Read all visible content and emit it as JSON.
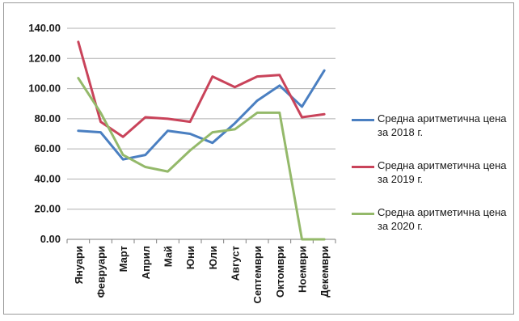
{
  "chart_data": {
    "type": "line",
    "categories": [
      "Януари",
      "Февруари",
      "Март",
      "Април",
      "Май",
      "Юни",
      "Юли",
      "Август",
      "Септември",
      "Октомври",
      "Ноември",
      "Декември"
    ],
    "y_tick_labels": [
      "0.00",
      "20.00",
      "40.00",
      "60.00",
      "80.00",
      "100.00",
      "120.00",
      "140.00"
    ],
    "ylim": [
      0,
      140
    ],
    "grid": true,
    "legend_position": "right",
    "series": [
      {
        "name": "Средна аритметична цена за 2018 г.",
        "color": "#4a7fc1",
        "values": [
          72,
          71,
          53,
          56,
          72,
          70,
          64,
          77,
          92,
          102,
          88,
          112
        ]
      },
      {
        "name": "Средна аритметична цена за 2019 г.",
        "color": "#c9435a",
        "values": [
          131,
          78,
          68,
          81,
          80,
          78,
          108,
          101,
          108,
          109,
          81,
          83
        ]
      },
      {
        "name": "Средна аритметична цена за 2020 г.",
        "color": "#94b96a",
        "values": [
          107,
          84,
          56,
          48,
          45,
          59,
          71,
          73,
          84,
          84,
          0,
          0
        ]
      }
    ]
  }
}
